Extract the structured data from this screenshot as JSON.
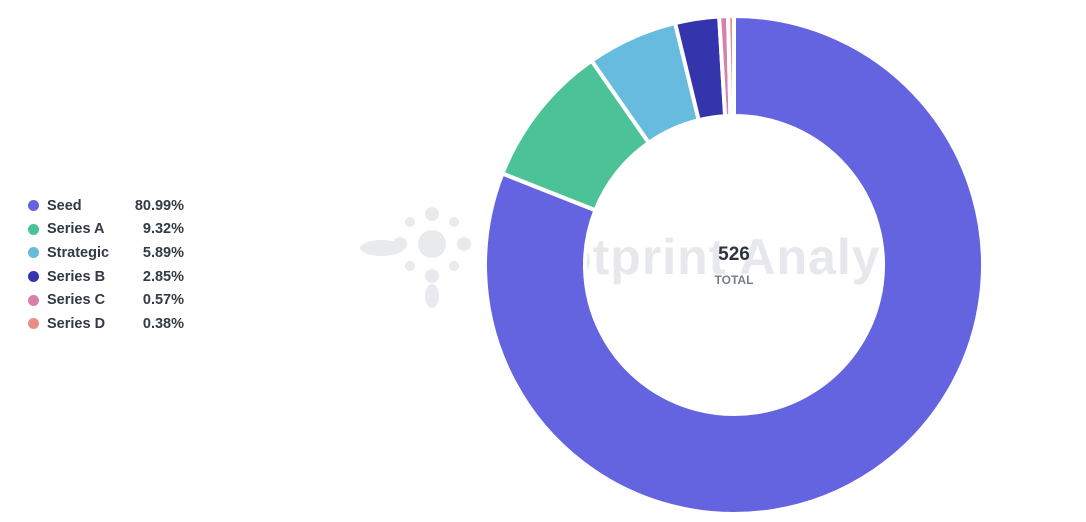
{
  "chart_data": {
    "type": "pie",
    "donut": true,
    "categories": [
      "Seed",
      "Series A",
      "Strategic",
      "Series B",
      "Series C",
      "Series D"
    ],
    "values": [
      80.99,
      9.32,
      5.89,
      2.85,
      0.57,
      0.38
    ],
    "value_labels": [
      "80.99%",
      "9.32%",
      "5.89%",
      "2.85%",
      "0.57%",
      "0.38%"
    ],
    "colors": [
      "#6464e0",
      "#4cc397",
      "#66bbdf",
      "#3434ad",
      "#d780a9",
      "#ec8e85"
    ],
    "center_value": "526",
    "center_label": "TOTAL",
    "legend_position": "left"
  },
  "watermark": {
    "text": "Footprint Analytics"
  }
}
